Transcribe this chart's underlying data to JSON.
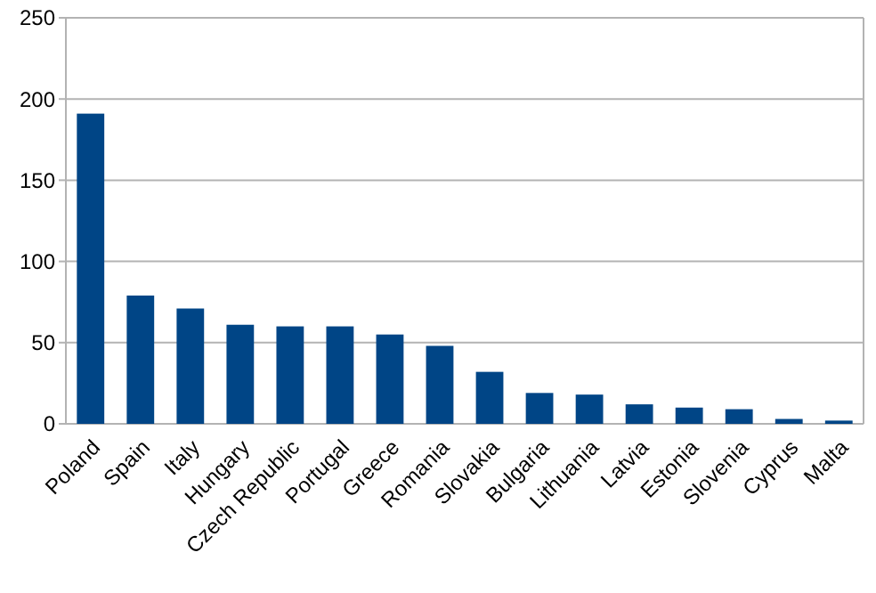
{
  "chart_data": {
    "type": "bar",
    "categories": [
      "Poland",
      "Spain",
      "Italy",
      "Hungary",
      "Czech Republic",
      "Portugal",
      "Greece",
      "Romania",
      "Slovakia",
      "Bulgaria",
      "Lithuania",
      "Latvia",
      "Estonia",
      "Slovenia",
      "Cyprus",
      "Malta"
    ],
    "values": [
      191,
      79,
      71,
      61,
      60,
      60,
      55,
      48,
      32,
      19,
      18,
      12,
      10,
      9,
      3,
      2
    ],
    "color": "#004586",
    "ylim": [
      0,
      250
    ],
    "yticks": [
      0,
      50,
      100,
      150,
      200,
      250
    ],
    "grid": "y"
  }
}
